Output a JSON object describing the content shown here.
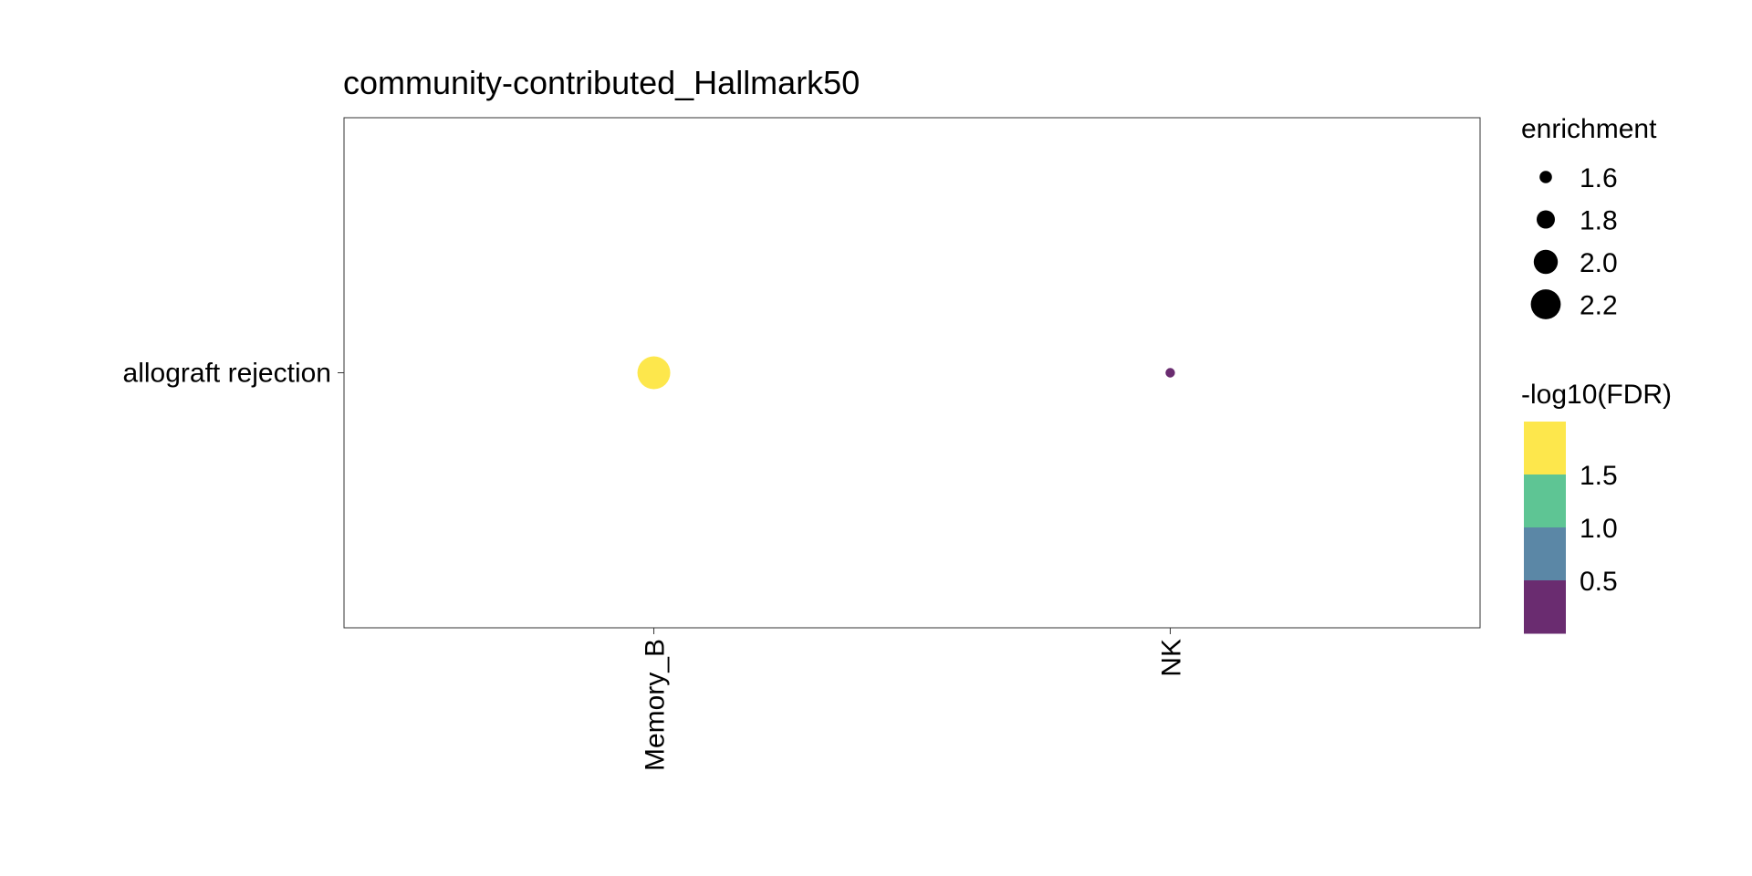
{
  "chart_data": {
    "type": "scatter",
    "title": "community-contributed_Hallmark50",
    "xlabel": "",
    "ylabel": "",
    "x_categories": [
      "Memory_B",
      "NK"
    ],
    "y_categories": [
      "allograft rejection"
    ],
    "points": [
      {
        "x": "Memory_B",
        "y": "allograft rejection",
        "enrichment": 2.3,
        "neg_log10_fdr": 1.9,
        "color": "#FDE74C"
      },
      {
        "x": "NK",
        "y": "allograft rejection",
        "enrichment": 1.5,
        "neg_log10_fdr": 0.1,
        "color": "#6A2C70"
      }
    ],
    "size_legend": {
      "title": "enrichment",
      "entries": [
        {
          "label": "1.6",
          "value": 1.6
        },
        {
          "label": "1.8",
          "value": 1.8
        },
        {
          "label": "2.0",
          "value": 2.0
        },
        {
          "label": "2.2",
          "value": 2.2
        }
      ]
    },
    "color_legend": {
      "title": "-log10(FDR)",
      "bins": [
        {
          "color": "#FDE74C"
        },
        {
          "color": "#5EC594"
        },
        {
          "color": "#5B87A6"
        },
        {
          "color": "#6A2C70"
        }
      ],
      "labels": [
        "1.5",
        "1.0",
        "0.5"
      ]
    },
    "grid": false,
    "legend_position": "right"
  }
}
